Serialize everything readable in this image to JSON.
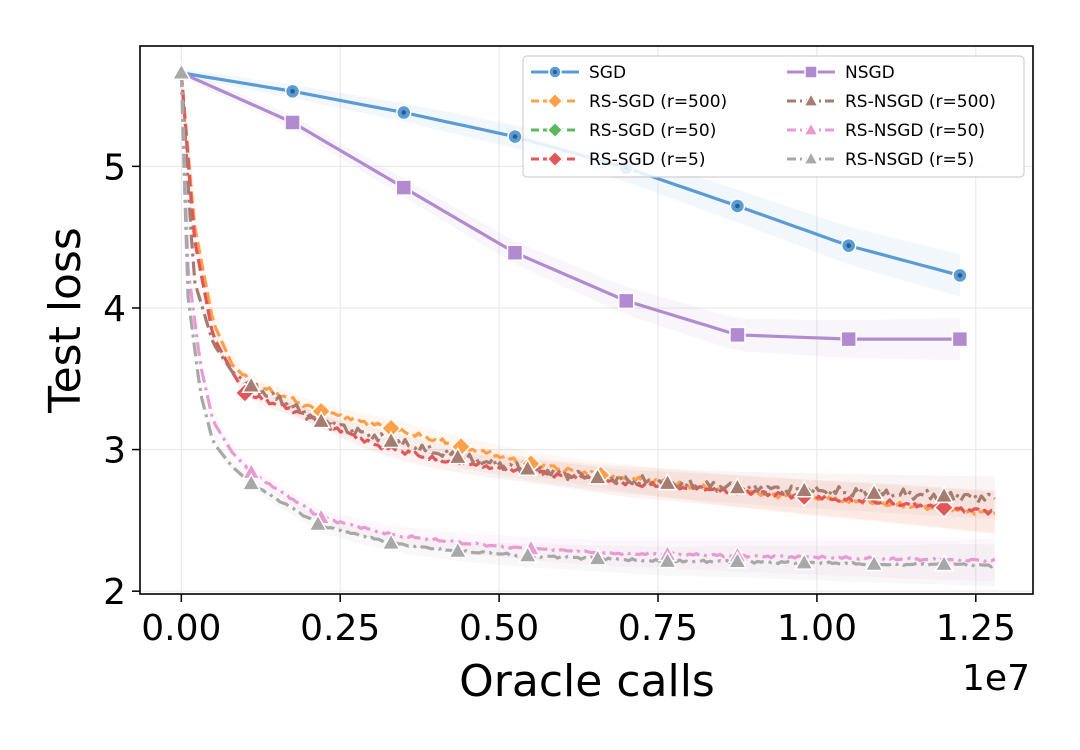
{
  "chart_data": {
    "type": "line",
    "xlabel": "Oracle calls",
    "ylabel": "Test loss",
    "x_offset_label": "1e7",
    "xlim": [
      -0.065,
      1.34
    ],
    "ylim": [
      1.98,
      5.85
    ],
    "xticks": [
      0.0,
      0.25,
      0.5,
      0.75,
      1.0,
      1.25
    ],
    "xtick_labels": [
      "0.00",
      "0.25",
      "0.50",
      "0.75",
      "1.00",
      "1.25"
    ],
    "yticks": [
      2,
      3,
      4,
      5
    ],
    "ytick_labels": [
      "2",
      "3",
      "4",
      "5"
    ],
    "grid": true,
    "legend_position": "top-right",
    "series": [
      {
        "name": "SGD",
        "color": "#5b9bd5",
        "dash": "solid",
        "marker": "circle",
        "band": true,
        "wiggle": 0,
        "x": [
          0.0,
          0.175,
          0.35,
          0.525,
          0.7,
          0.875,
          1.05,
          1.225
        ],
        "y": [
          5.66,
          5.53,
          5.38,
          5.21,
          4.99,
          4.72,
          4.44,
          4.23
        ],
        "mx": [
          0.175,
          0.35,
          0.525,
          0.7,
          0.875,
          1.05,
          1.225
        ]
      },
      {
        "name": "RS-SGD (r=500)",
        "color": "#ff9f4a",
        "dash": "dashed",
        "marker": "diamond",
        "band": true,
        "wiggle": 0.02,
        "x": [
          0.0,
          0.02,
          0.05,
          0.08,
          0.11,
          0.22,
          0.33,
          0.44,
          0.55,
          0.66,
          0.77,
          0.88,
          0.99,
          1.1,
          1.21,
          1.28
        ],
        "y": [
          5.66,
          4.6,
          3.9,
          3.6,
          3.47,
          3.27,
          3.15,
          3.02,
          2.9,
          2.82,
          2.76,
          2.7,
          2.66,
          2.62,
          2.58,
          2.55
        ],
        "mx": [
          0.22,
          0.33,
          0.44,
          0.55,
          0.66
        ]
      },
      {
        "name": "RS-SGD (r=50)",
        "color": "#5cb85c",
        "dash": "dashed",
        "marker": "diamond",
        "band": false,
        "wiggle": 0,
        "x": [],
        "y": [],
        "mx": []
      },
      {
        "name": "RS-SGD (r=5)",
        "color": "#e15759",
        "dash": "dashed",
        "marker": "diamond",
        "band": true,
        "wiggle": 0.02,
        "x": [
          0.0,
          0.02,
          0.05,
          0.08,
          0.1,
          0.2,
          0.3,
          0.4,
          0.5,
          0.6,
          0.7,
          0.8,
          0.9,
          1.0,
          1.1,
          1.2,
          1.28
        ],
        "y": [
          5.66,
          4.5,
          3.8,
          3.55,
          3.4,
          3.24,
          3.04,
          2.93,
          2.87,
          2.82,
          2.76,
          2.73,
          2.7,
          2.66,
          2.63,
          2.59,
          2.56
        ],
        "mx": [
          0.1,
          0.98,
          1.2
        ]
      },
      {
        "name": "NSGD",
        "color": "#b18ad0",
        "dash": "solid",
        "marker": "square",
        "band": true,
        "wiggle": 0,
        "x": [
          0.0,
          0.175,
          0.35,
          0.525,
          0.7,
          0.875,
          1.05,
          1.225
        ],
        "y": [
          5.66,
          5.31,
          4.85,
          4.39,
          4.05,
          3.81,
          3.78,
          3.78
        ],
        "mx": [
          0.175,
          0.35,
          0.525,
          0.7,
          0.875,
          1.05,
          1.225
        ]
      },
      {
        "name": "RS-NSGD (r=500)",
        "color": "#a57c6f",
        "dash": "dashdot",
        "marker": "triangle",
        "band": true,
        "wiggle": 0.04,
        "x": [
          0.0,
          0.02,
          0.05,
          0.08,
          0.11,
          0.22,
          0.33,
          0.44,
          0.55,
          0.66,
          0.77,
          0.88,
          0.99,
          1.1,
          1.21,
          1.28
        ],
        "y": [
          5.66,
          4.2,
          3.75,
          3.55,
          3.45,
          3.2,
          3.06,
          2.94,
          2.86,
          2.8,
          2.76,
          2.73,
          2.71,
          2.69,
          2.67,
          2.66
        ],
        "mx": [
          0.0,
          0.11,
          0.22,
          0.33,
          0.435,
          0.545,
          0.655,
          0.765,
          0.875,
          0.98,
          1.09,
          1.2
        ]
      },
      {
        "name": "RS-NSGD (r=50)",
        "color": "#e89bd3",
        "dash": "dashdot",
        "marker": "triangle",
        "band": true,
        "wiggle": 0.01,
        "x": [
          0.0,
          0.01,
          0.03,
          0.05,
          0.08,
          0.11,
          0.22,
          0.33,
          0.44,
          0.55,
          0.66,
          0.77,
          0.88,
          0.99,
          1.1,
          1.21,
          1.28
        ],
        "y": [
          5.66,
          4.3,
          3.6,
          3.2,
          2.98,
          2.84,
          2.52,
          2.4,
          2.34,
          2.3,
          2.27,
          2.26,
          2.25,
          2.24,
          2.23,
          2.22,
          2.22
        ],
        "mx": [
          0.11,
          0.22,
          0.55,
          0.765,
          0.875
        ]
      },
      {
        "name": "RS-NSGD (r=5)",
        "color": "#a8a8a8",
        "dash": "dashdot",
        "marker": "triangle",
        "band": true,
        "wiggle": 0.01,
        "x": [
          0.0,
          0.01,
          0.03,
          0.05,
          0.08,
          0.11,
          0.22,
          0.33,
          0.44,
          0.55,
          0.66,
          0.77,
          0.88,
          0.99,
          1.1,
          1.21,
          1.28
        ],
        "y": [
          5.66,
          4.1,
          3.4,
          3.05,
          2.88,
          2.76,
          2.46,
          2.34,
          2.28,
          2.25,
          2.23,
          2.21,
          2.21,
          2.2,
          2.19,
          2.19,
          2.18
        ],
        "mx": [
          0.0,
          0.11,
          0.215,
          0.33,
          0.435,
          0.545,
          0.655,
          0.765,
          0.875,
          0.98,
          1.09,
          1.2
        ]
      }
    ]
  }
}
